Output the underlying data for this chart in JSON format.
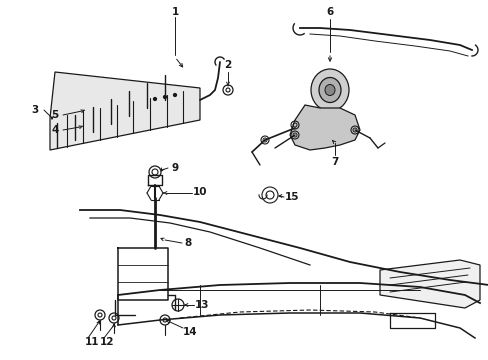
{
  "bg_color": "#ffffff",
  "line_color": "#1a1a1a",
  "fig_width": 4.89,
  "fig_height": 3.6,
  "dpi": 100,
  "gray_fill": "#d8d8d8",
  "light_gray": "#ebebeb"
}
